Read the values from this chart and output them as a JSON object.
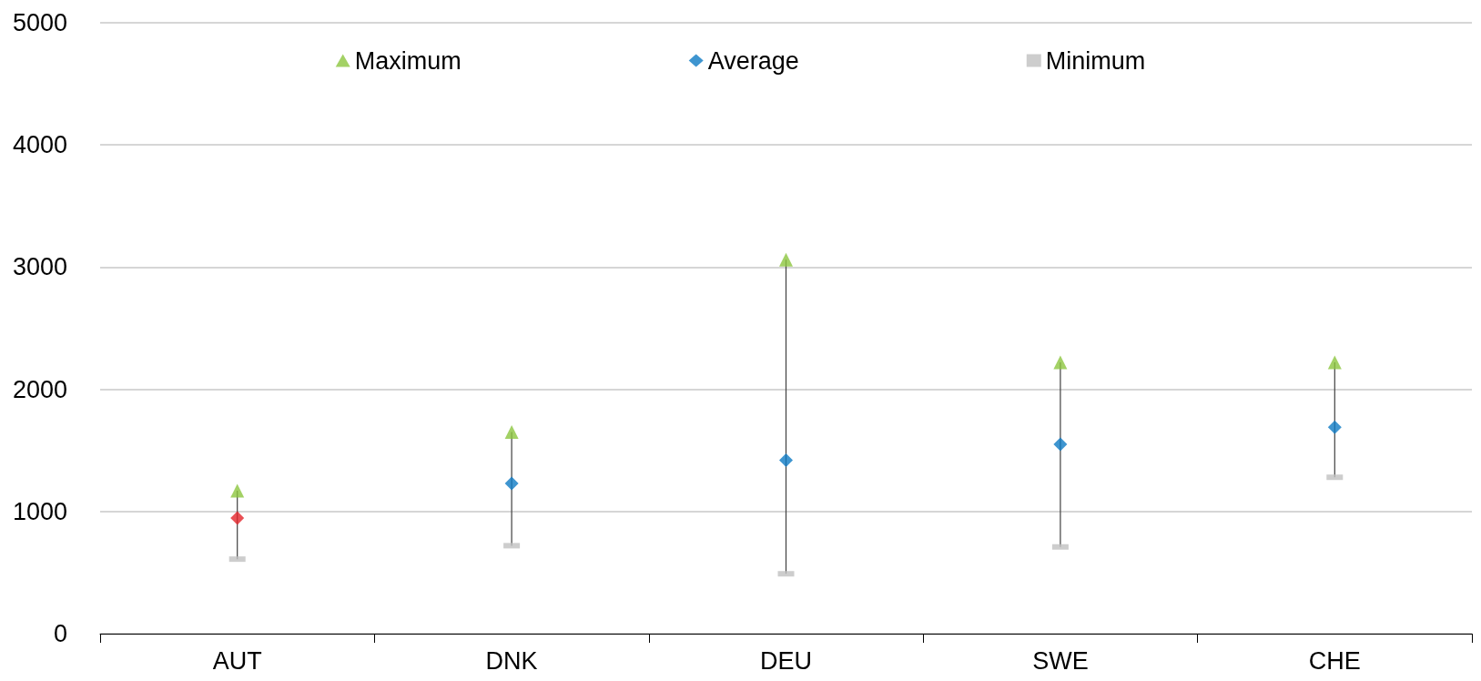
{
  "chart_data": {
    "type": "scatter",
    "categories": [
      "AUT",
      "DNK",
      "DEU",
      "SWE",
      "CHE"
    ],
    "series": [
      {
        "name": "Maximum",
        "color": "#8cc63f",
        "marker": "triangle",
        "values": [
          1170,
          1650,
          3060,
          2220,
          2220
        ]
      },
      {
        "name": "Average",
        "color": "#0e7ac4",
        "marker": "diamond",
        "colors": [
          "#e3242b",
          "#0e7ac4",
          "#0e7ac4",
          "#0e7ac4",
          "#0e7ac4"
        ],
        "values": [
          946,
          1230,
          1420,
          1550,
          1690
        ]
      },
      {
        "name": "Minimum",
        "color": "#c0c0c0",
        "values": [
          610,
          720,
          490,
          710,
          1280
        ]
      }
    ],
    "ylim": [
      0,
      5000
    ],
    "yticks": [
      0,
      1000,
      2000,
      3000,
      4000,
      5000
    ],
    "grid": "y",
    "legend": "top"
  }
}
